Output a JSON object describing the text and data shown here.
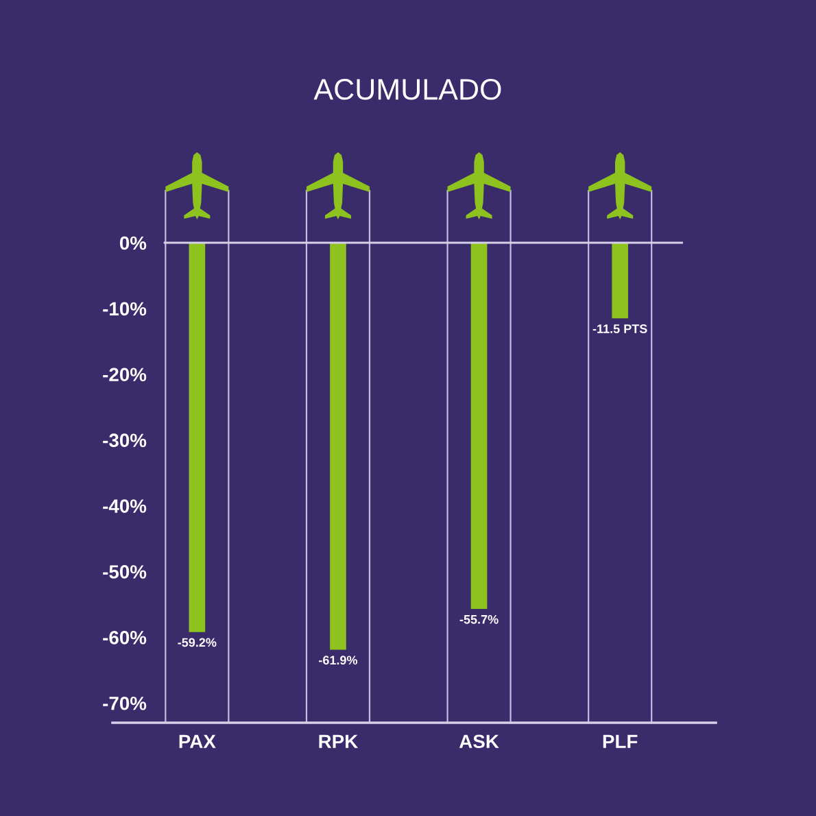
{
  "chart_data": {
    "type": "bar",
    "title": "ACUMULADO",
    "categories": [
      "PAX",
      "RPK",
      "ASK",
      "PLF"
    ],
    "values": [
      -59.2,
      -61.9,
      -55.7,
      -11.5
    ],
    "color": "#8dc21f",
    "value_labels": [
      "-59.2%",
      "-61.9%",
      "-55.7%",
      "-11.5 PTS"
    ],
    "ylim": [
      -73,
      0
    ],
    "yticks": [
      {
        "value": 0,
        "label": "0%"
      },
      {
        "value": -10,
        "label": "-10%"
      },
      {
        "value": -20,
        "label": "-20%"
      },
      {
        "value": -30,
        "label": "-30%"
      },
      {
        "value": -40,
        "label": "-40%"
      },
      {
        "value": -50,
        "label": "-50%"
      },
      {
        "value": -60,
        "label": "-60%"
      },
      {
        "value": -70,
        "label": "-70%"
      }
    ]
  }
}
